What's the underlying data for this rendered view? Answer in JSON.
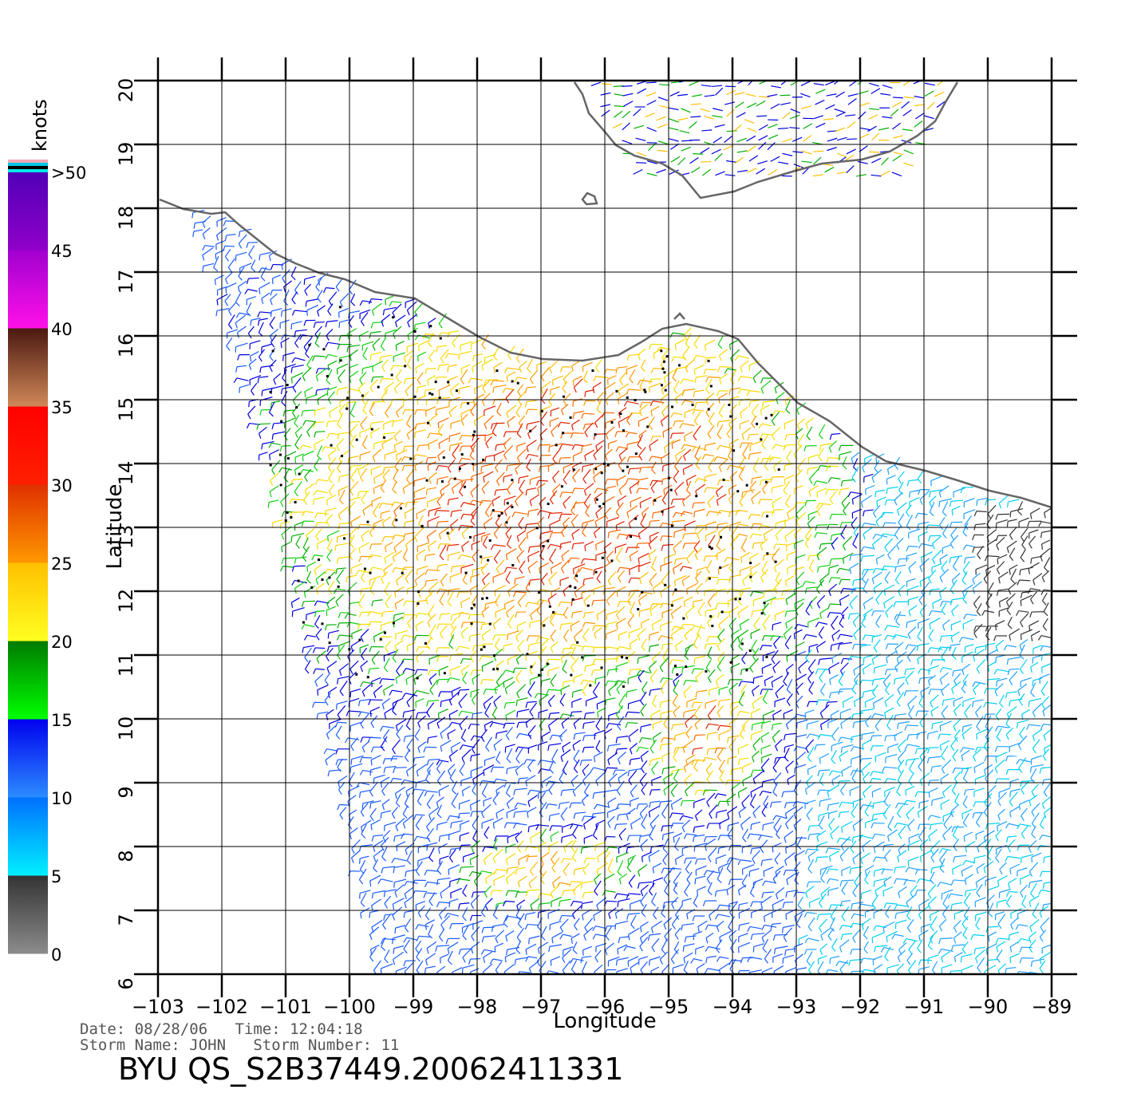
{
  "map": {
    "xlabel": "Longitude",
    "ylabel": "Latitude",
    "lon_range": [
      -103,
      -89
    ],
    "lat_range": [
      6,
      20
    ],
    "lon_ticks": [
      -103,
      -102,
      -101,
      -100,
      -99,
      -98,
      -97,
      -96,
      -95,
      -94,
      -93,
      -92,
      -91,
      -90,
      -89
    ],
    "lon_tick_labels": [
      "−103",
      "−102",
      "−101",
      "−100",
      "−99",
      "−98",
      "−97",
      "−96",
      "−95",
      "−94",
      "−93",
      "−92",
      "−91",
      "−90",
      "−89"
    ],
    "lat_ticks": [
      6,
      7,
      8,
      9,
      10,
      11,
      12,
      13,
      14,
      15,
      16,
      17,
      18,
      19,
      20
    ],
    "lat_tick_labels": [
      "6",
      "7",
      "8",
      "9",
      "10",
      "11",
      "12",
      "13",
      "14",
      "15",
      "16",
      "17",
      "18",
      "19",
      "20"
    ],
    "grid": true,
    "coastline_color": "#666666"
  },
  "colorbar": {
    "unit_label": "knots",
    "labels": [
      "0",
      "5",
      "10",
      "15",
      "20",
      "25",
      "30",
      "35",
      "40",
      "45",
      ">50"
    ],
    "segments": [
      {
        "from": 0,
        "to": 5,
        "top": "#333333",
        "bottom": "#8c8c8c"
      },
      {
        "from": 5,
        "to": 10,
        "top": "#0070ff",
        "bottom": "#00f0ff"
      },
      {
        "from": 10,
        "to": 15,
        "top": "#0000ee",
        "bottom": "#2b8cff"
      },
      {
        "from": 15,
        "to": 20,
        "top": "#007a00",
        "bottom": "#00ff00"
      },
      {
        "from": 20,
        "to": 25,
        "top": "#ffc000",
        "bottom": "#ffff20"
      },
      {
        "from": 25,
        "to": 30,
        "top": "#e03000",
        "bottom": "#ff9800"
      },
      {
        "from": 30,
        "to": 35,
        "top": "#ff0000",
        "bottom": "#ff2000"
      },
      {
        "from": 35,
        "to": 40,
        "top": "#4a1810",
        "bottom": "#d08858"
      },
      {
        "from": 40,
        "to": 45,
        "top": "#a000d0",
        "bottom": "#ff10e8"
      },
      {
        "from": 45,
        "to": 50,
        "top": "#5000b8",
        "bottom": "#9000c8"
      }
    ],
    "cap_colors": [
      "#f0a8b8",
      "#00c8e8",
      "#000000",
      "#00e8e8"
    ]
  },
  "info": {
    "date_line": "Date: 08/28/06   Time: 12:04:18",
    "storm_line": "Storm Name: JOHN   Storm Number: 11",
    "product": "BYU QS_S2B37449.20062411331"
  }
}
